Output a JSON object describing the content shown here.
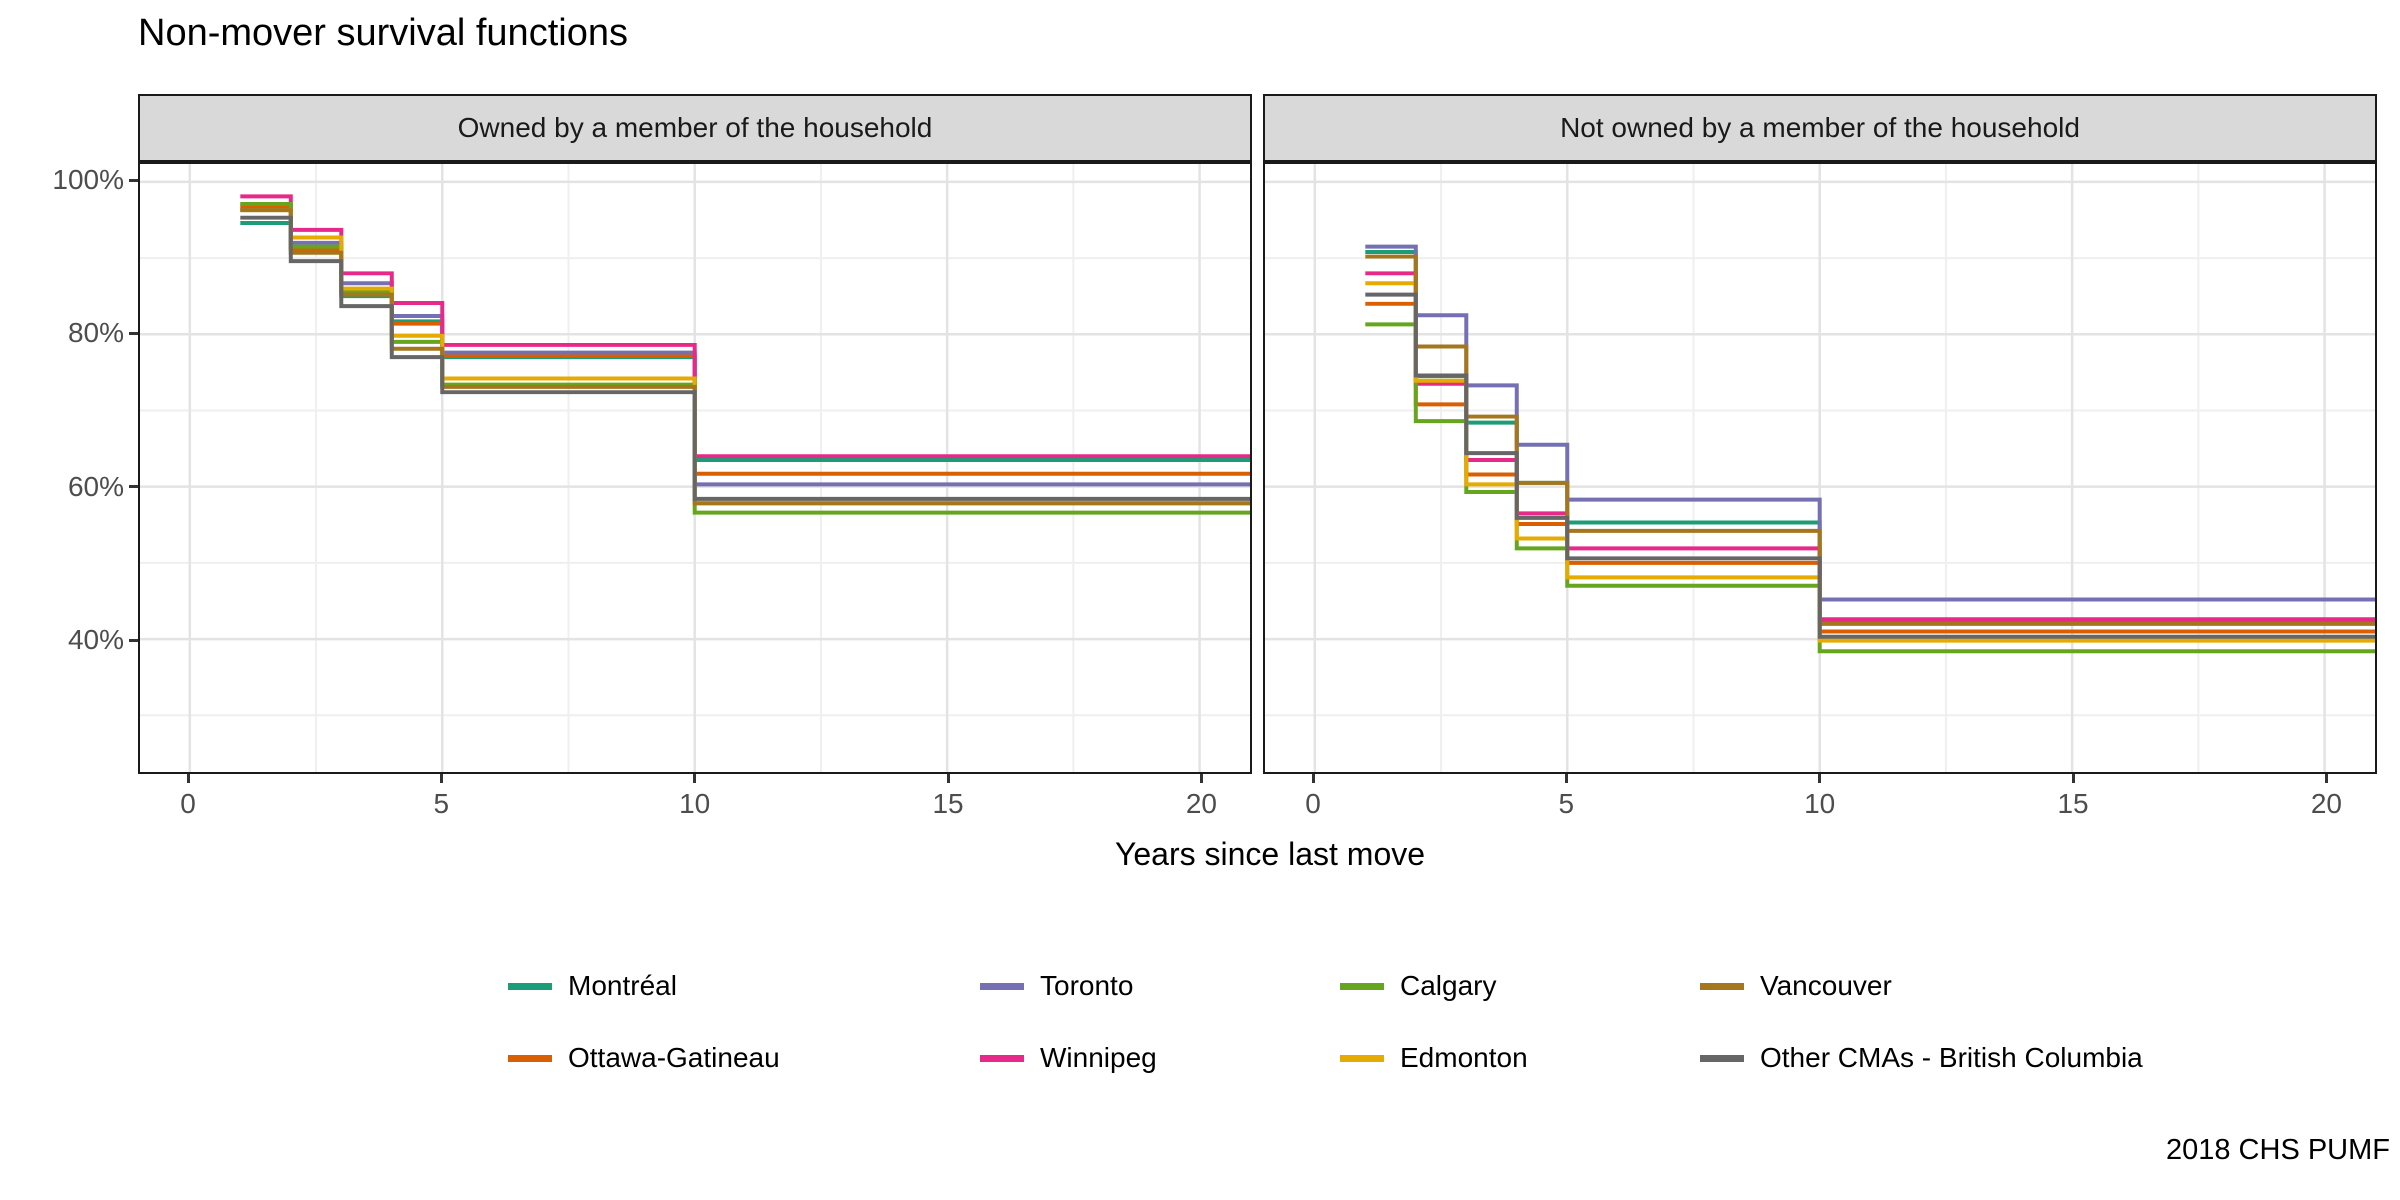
{
  "chart_data": {
    "type": "step",
    "title": "Non-mover survival functions",
    "xlabel": "Years since last move",
    "caption": "2018 CHS PUMF",
    "x_breaks": [
      0,
      5,
      10,
      15,
      20
    ],
    "x_minor_breaks": [
      2.5,
      7.5,
      12.5,
      17.5
    ],
    "y_breaks": [
      40,
      60,
      80,
      100
    ],
    "y_tick_labels": [
      "40%",
      "60%",
      "80%",
      "100%"
    ],
    "y_minor_breaks": [
      30,
      50,
      70,
      90
    ],
    "ylim": [
      22.5,
      102.3
    ],
    "xlim": [
      -1,
      21
    ],
    "x_steps": [
      1,
      2,
      3,
      4,
      5,
      10,
      21
    ],
    "grid": true,
    "legend_position": "bottom",
    "units": "percent surviving (not moved)",
    "facets": [
      {
        "label": "Owned by a member of the household",
        "series": [
          {
            "name": "Montréal",
            "color": "#1B9E77",
            "values": [
              94.6,
              91.4,
              85.0,
              81.7,
              77.0,
              63.5
            ]
          },
          {
            "name": "Ottawa-Gatineau",
            "color": "#D95F02",
            "values": [
              96.9,
              91.1,
              85.8,
              81.4,
              77.2,
              61.7
            ]
          },
          {
            "name": "Toronto",
            "color": "#7570B3",
            "values": [
              96.4,
              92.0,
              86.7,
              82.4,
              77.6,
              60.3
            ]
          },
          {
            "name": "Winnipeg",
            "color": "#E7298A",
            "values": [
              98.1,
              93.7,
              88.0,
              84.1,
              78.6,
              64.0
            ]
          },
          {
            "name": "Calgary",
            "color": "#66A61E",
            "values": [
              97.1,
              91.5,
              85.6,
              79.0,
              73.4,
              56.6
            ]
          },
          {
            "name": "Edmonton",
            "color": "#E6AB02",
            "values": [
              96.3,
              92.7,
              86.0,
              79.8,
              74.2,
              57.9
            ]
          },
          {
            "name": "Vancouver",
            "color": "#A6761D",
            "values": [
              96.3,
              90.7,
              85.2,
              78.1,
              73.1,
              57.8
            ]
          },
          {
            "name": "Other CMAs - British Columbia",
            "color": "#666666",
            "values": [
              95.3,
              89.6,
              83.7,
              77.0,
              72.4,
              58.4
            ]
          }
        ]
      },
      {
        "label": "Not owned by a member of the household",
        "series": [
          {
            "name": "Montréal",
            "color": "#1B9E77",
            "values": [
              90.8,
              74.5,
              68.4,
              60.5,
              55.3,
              42.3
            ]
          },
          {
            "name": "Ottawa-Gatineau",
            "color": "#D95F02",
            "values": [
              84.0,
              70.8,
              61.6,
              55.1,
              50.0,
              41.0
            ]
          },
          {
            "name": "Toronto",
            "color": "#7570B3",
            "values": [
              91.5,
              82.5,
              73.3,
              65.5,
              58.3,
              45.2
            ]
          },
          {
            "name": "Winnipeg",
            "color": "#E7298A",
            "values": [
              88.0,
              73.5,
              63.5,
              56.5,
              51.9,
              42.6
            ]
          },
          {
            "name": "Calgary",
            "color": "#66A61E",
            "values": [
              81.3,
              68.6,
              59.3,
              51.9,
              47.0,
              38.4
            ]
          },
          {
            "name": "Edmonton",
            "color": "#E6AB02",
            "values": [
              86.7,
              73.9,
              60.3,
              53.2,
              48.1,
              39.8
            ]
          },
          {
            "name": "Vancouver",
            "color": "#A6761D",
            "values": [
              90.2,
              78.4,
              69.2,
              60.5,
              54.2,
              42.0
            ]
          },
          {
            "name": "Other CMAs - British Columbia",
            "color": "#666666",
            "values": [
              85.2,
              74.6,
              64.4,
              55.9,
              50.6,
              40.3
            ]
          }
        ]
      }
    ],
    "legend": {
      "items": [
        {
          "label": "Montréal",
          "color": "#1B9E77"
        },
        {
          "label": "Ottawa-Gatineau",
          "color": "#D95F02"
        },
        {
          "label": "Toronto",
          "color": "#7570B3"
        },
        {
          "label": "Winnipeg",
          "color": "#E7298A"
        },
        {
          "label": "Calgary",
          "color": "#66A61E"
        },
        {
          "label": "Edmonton",
          "color": "#E6AB02"
        },
        {
          "label": "Vancouver",
          "color": "#A6761D"
        },
        {
          "label": "Other CMAs - British Columbia",
          "color": "#666666"
        }
      ]
    }
  }
}
